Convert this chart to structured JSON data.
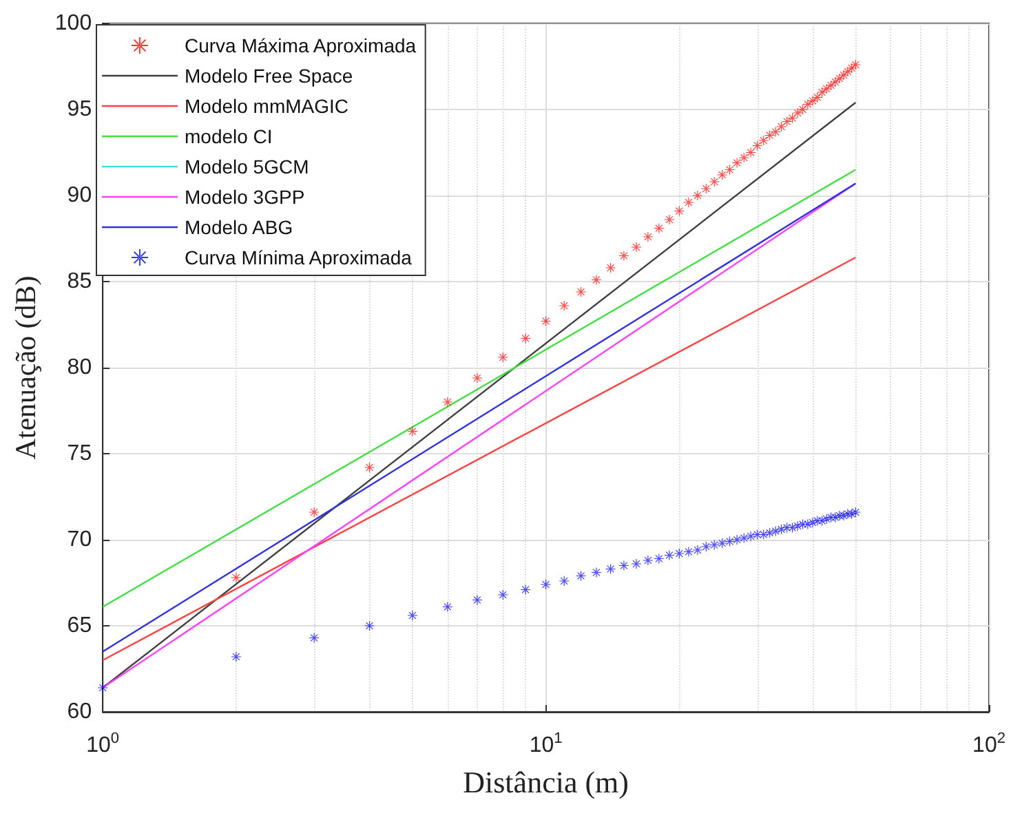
{
  "chart_data": {
    "type": "line",
    "xlabel": "Distância (m)",
    "ylabel": "Atenuação (dB)",
    "log": "x",
    "xlim": [
      1,
      100
    ],
    "xticks": [
      {
        "value": 1,
        "label": "10$^{0}$"
      },
      {
        "value": 10,
        "label": "10$^{1}$"
      },
      {
        "value": 100,
        "label": "10$^{2}$"
      }
    ],
    "ylim": [
      60,
      100
    ],
    "yticks": [
      60,
      65,
      70,
      75,
      80,
      85,
      90,
      95,
      100
    ],
    "grid": true,
    "legend": "top left",
    "series": [
      {
        "name": "Curva Máxima Aproximada",
        "type": "scatter",
        "marker": "star",
        "color": "#ff0000",
        "x": [
          2,
          3,
          4,
          5,
          6,
          7,
          8,
          9,
          10,
          11,
          12,
          13,
          14,
          15,
          16,
          17,
          18,
          19,
          20,
          21,
          22,
          23,
          24,
          25,
          26,
          27,
          28,
          29,
          30,
          31,
          32,
          33,
          34,
          35,
          36,
          37,
          38,
          39,
          40,
          41,
          42,
          43,
          44,
          45,
          46,
          47,
          48,
          49,
          50
        ],
        "values": [
          67.8,
          71.6,
          74.2,
          76.3,
          78.0,
          79.4,
          80.6,
          81.7,
          82.7,
          83.6,
          84.4,
          85.1,
          85.8,
          86.5,
          87.0,
          87.6,
          88.1,
          88.6,
          89.1,
          89.6,
          90.0,
          90.4,
          90.8,
          91.2,
          91.5,
          91.9,
          92.2,
          92.5,
          92.9,
          93.2,
          93.5,
          93.7,
          94.0,
          94.3,
          94.5,
          94.8,
          95.0,
          95.3,
          95.5,
          95.7,
          96.0,
          96.2,
          96.4,
          96.6,
          96.8,
          97.0,
          97.2,
          97.4,
          97.6
        ]
      },
      {
        "name": "Modelo Free Space",
        "marker": "none",
        "color": "#404040",
        "x": [
          1,
          50
        ],
        "values": [
          61.4,
          95.4
        ]
      },
      {
        "name": "Modelo mmMAGIC",
        "marker": "none",
        "color": "#ff4040",
        "x": [
          1,
          50
        ],
        "values": [
          63.0,
          86.4
        ]
      },
      {
        "name": "modelo CI",
        "marker": "none",
        "color": "#40e040",
        "x": [
          1,
          50
        ],
        "values": [
          66.1,
          91.5
        ]
      },
      {
        "name": "Modelo 5GCM",
        "marker": "none",
        "color": "#40e0e0",
        "values": [
          null,
          null
        ]
      },
      {
        "name": "Modelo 3GPP",
        "marker": "none",
        "color": "#ff40ff",
        "x": [
          1,
          50
        ],
        "values": [
          61.4,
          90.7
        ]
      },
      {
        "name": "Modelo ABG",
        "marker": "none",
        "color": "#3030e0",
        "x": [
          1,
          50
        ],
        "values": [
          63.5,
          90.7
        ]
      },
      {
        "name": "Curva Mínima Aproximada",
        "type": "scatter",
        "marker": "star",
        "color": "#0000ff",
        "x": [
          1,
          2,
          3,
          4,
          5,
          6,
          7,
          8,
          9,
          10,
          11,
          12,
          13,
          14,
          15,
          16,
          17,
          18,
          19,
          20,
          21,
          22,
          23,
          24,
          25,
          26,
          27,
          28,
          29,
          30,
          31,
          32,
          33,
          34,
          35,
          36,
          37,
          38,
          39,
          40,
          41,
          42,
          43,
          44,
          45,
          46,
          47,
          48,
          49,
          50
        ],
        "values": [
          61.4,
          63.2,
          64.3,
          65.0,
          65.6,
          66.1,
          66.5,
          66.8,
          67.1,
          67.4,
          67.6,
          67.9,
          68.1,
          68.3,
          68.5,
          68.6,
          68.8,
          68.9,
          69.1,
          69.2,
          69.3,
          69.4,
          69.6,
          69.7,
          69.8,
          69.9,
          70.0,
          70.1,
          70.2,
          70.3,
          70.3,
          70.4,
          70.5,
          70.6,
          70.7,
          70.7,
          70.8,
          70.9,
          70.9,
          71.0,
          71.1,
          71.1,
          71.2,
          71.3,
          71.3,
          71.4,
          71.4,
          71.5,
          71.5,
          71.6
        ]
      }
    ]
  }
}
